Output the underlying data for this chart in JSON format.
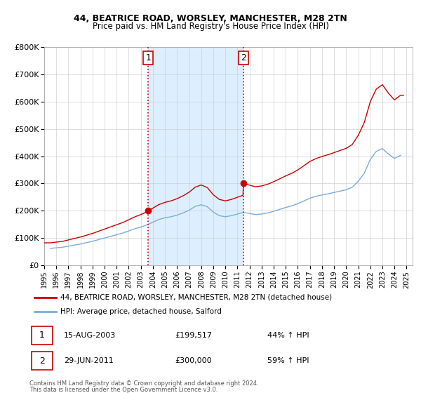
{
  "title": "44, BEATRICE ROAD, WORSLEY, MANCHESTER, M28 2TN",
  "subtitle": "Price paid vs. HM Land Registry's House Price Index (HPI)",
  "legend_label_red": "44, BEATRICE ROAD, WORSLEY, MANCHESTER, M28 2TN (detached house)",
  "legend_label_blue": "HPI: Average price, detached house, Salford",
  "annotation1_date": "15-AUG-2003",
  "annotation1_price": "£199,517",
  "annotation1_pct": "44% ↑ HPI",
  "annotation2_date": "29-JUN-2011",
  "annotation2_price": "£300,000",
  "annotation2_pct": "59% ↑ HPI",
  "footnote1": "Contains HM Land Registry data © Crown copyright and database right 2024.",
  "footnote2": "This data is licensed under the Open Government Licence v3.0.",
  "red_color": "#cc0000",
  "blue_color": "#7aaddc",
  "shaded_color": "#ddeeff",
  "vline_color": "#cc0000",
  "ylim": [
    0,
    800000
  ],
  "yticks": [
    0,
    100000,
    200000,
    300000,
    400000,
    500000,
    600000,
    700000,
    800000
  ],
  "ytick_labels": [
    "£0",
    "£100K",
    "£200K",
    "£300K",
    "£400K",
    "£500K",
    "£600K",
    "£700K",
    "£800K"
  ],
  "xlim_start": 1995.0,
  "xlim_end": 2025.5,
  "marker1_x": 2003.62,
  "marker1_y": 199517,
  "marker2_x": 2011.49,
  "marker2_y": 300000,
  "vline1_x": 2003.62,
  "vline2_x": 2011.49,
  "hpi_years": [
    1995.5,
    1996.0,
    1996.5,
    1997.0,
    1997.5,
    1998.0,
    1998.5,
    1999.0,
    1999.5,
    2000.0,
    2000.5,
    2001.0,
    2001.5,
    2002.0,
    2002.5,
    2003.0,
    2003.5,
    2004.0,
    2004.5,
    2005.0,
    2005.5,
    2006.0,
    2006.5,
    2007.0,
    2007.5,
    2008.0,
    2008.5,
    2009.0,
    2009.5,
    2010.0,
    2010.5,
    2011.0,
    2011.5,
    2012.0,
    2012.5,
    2013.0,
    2013.5,
    2014.0,
    2014.5,
    2015.0,
    2015.5,
    2016.0,
    2016.5,
    2017.0,
    2017.5,
    2018.0,
    2018.5,
    2019.0,
    2019.5,
    2020.0,
    2020.5,
    2021.0,
    2021.5,
    2022.0,
    2022.5,
    2023.0,
    2023.5,
    2024.0,
    2024.5
  ],
  "hpi_values": [
    62000,
    64000,
    66000,
    70000,
    74000,
    78000,
    83000,
    88000,
    94000,
    100000,
    106000,
    112000,
    118000,
    126000,
    134000,
    140000,
    148000,
    158000,
    168000,
    174000,
    178000,
    184000,
    192000,
    202000,
    216000,
    222000,
    215000,
    195000,
    182000,
    178000,
    182000,
    188000,
    194000,
    190000,
    186000,
    188000,
    192000,
    198000,
    205000,
    212000,
    218000,
    226000,
    236000,
    246000,
    253000,
    258000,
    262000,
    267000,
    272000,
    277000,
    286000,
    308000,
    338000,
    388000,
    418000,
    428000,
    408000,
    392000,
    403000
  ]
}
